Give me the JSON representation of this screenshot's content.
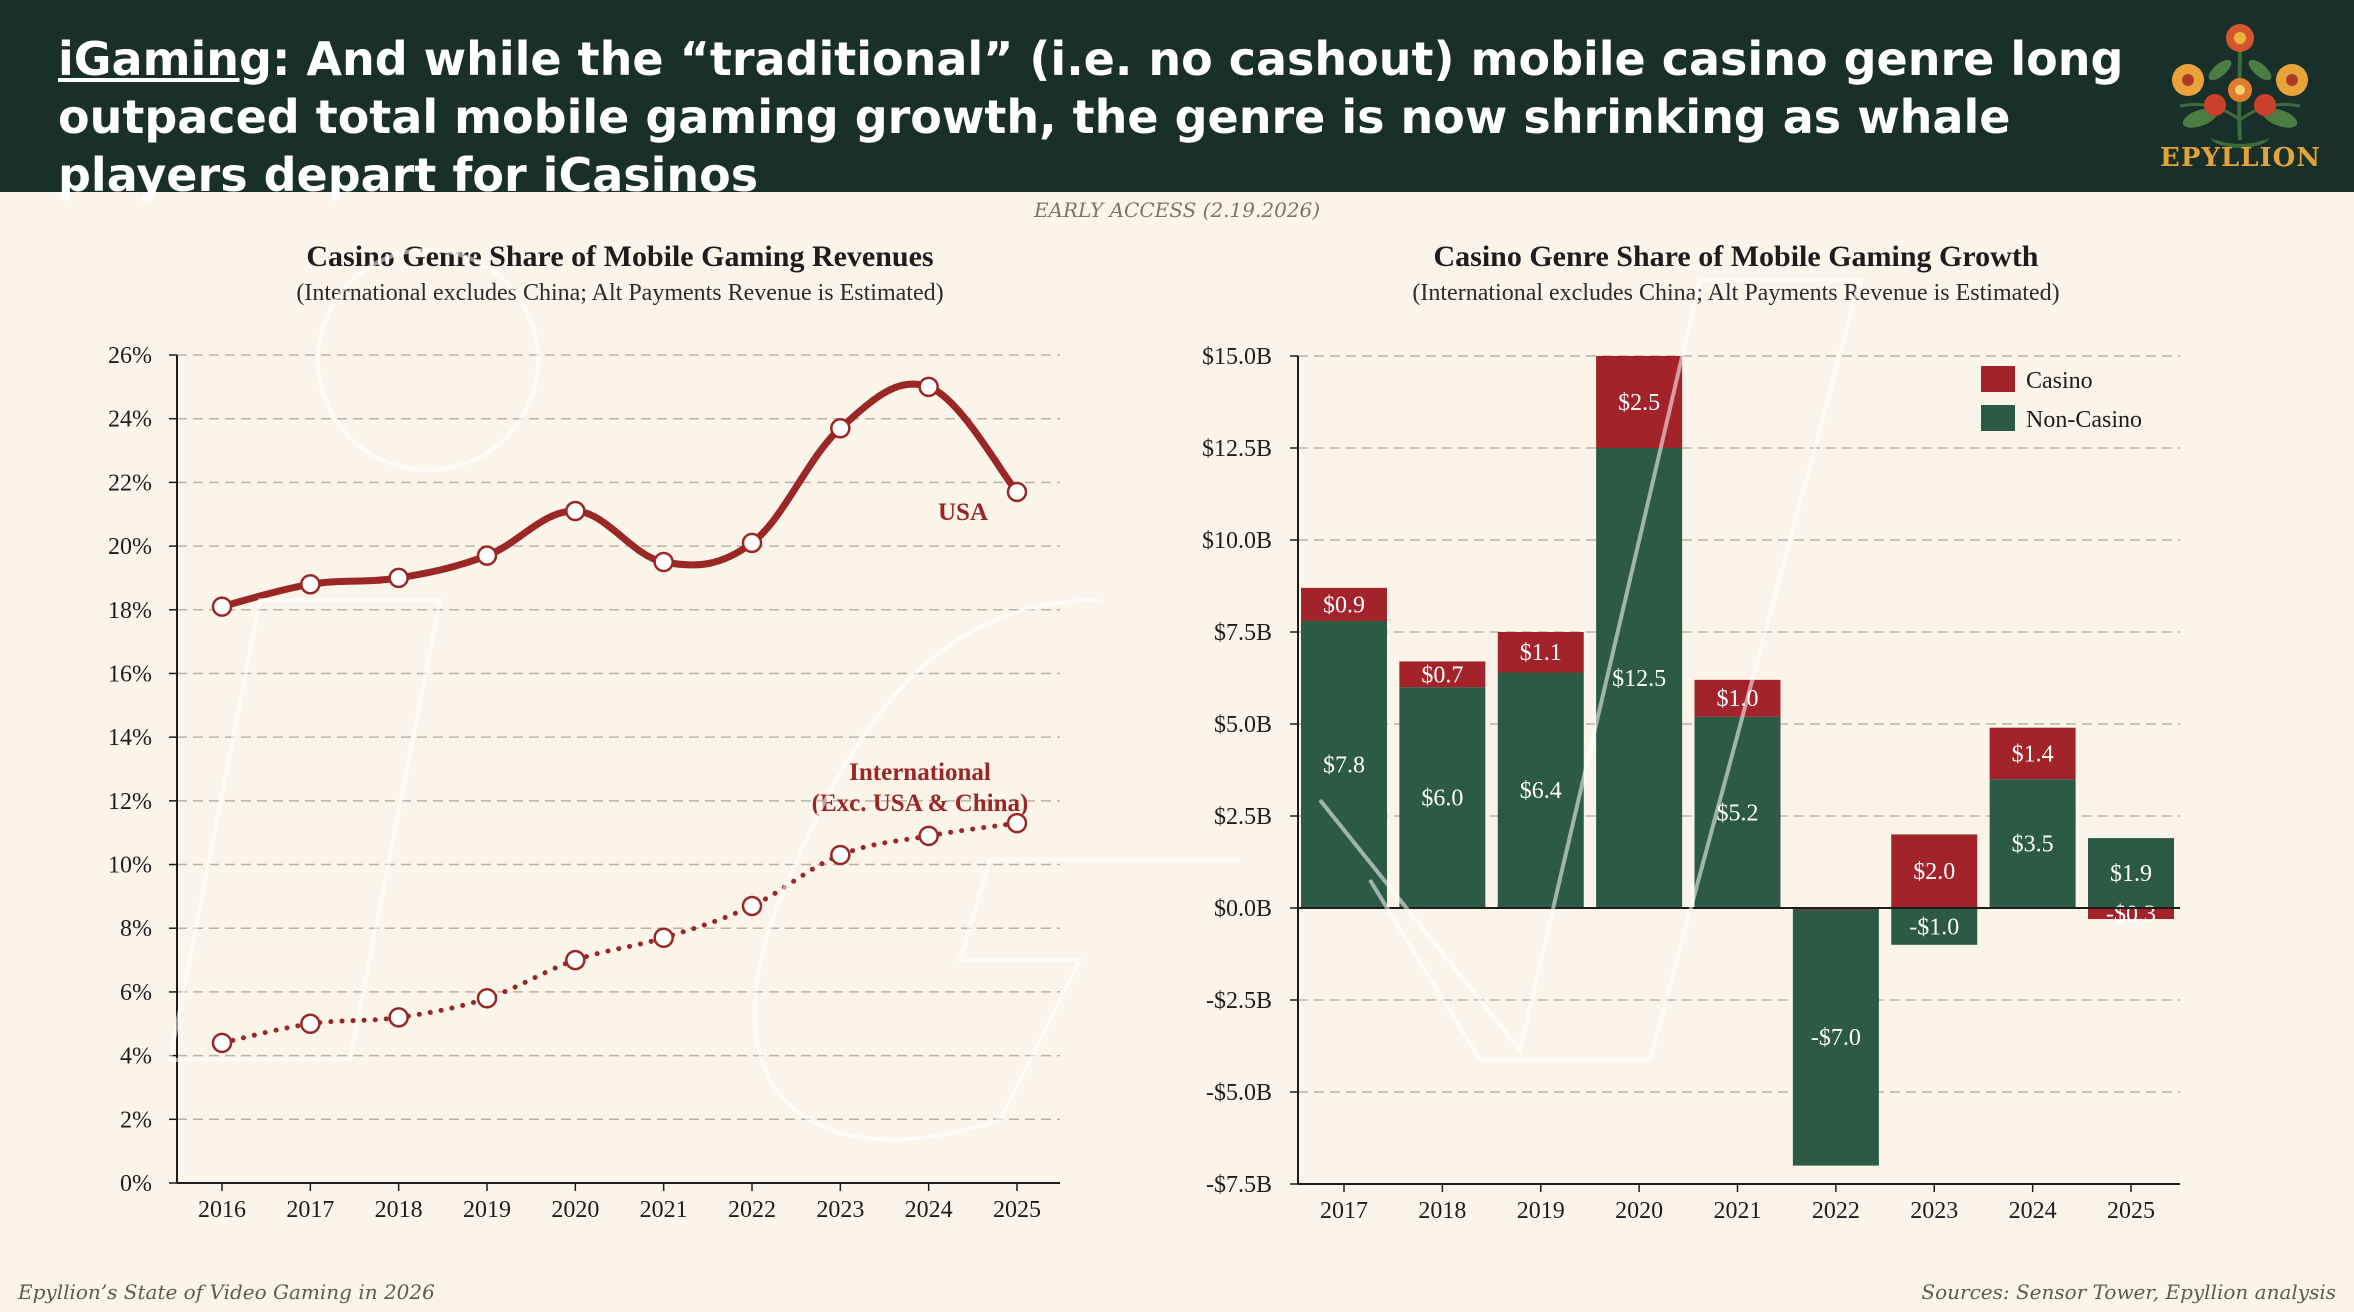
{
  "header": {
    "headline_keyword": "iGaming",
    "headline_rest": ": And while the “traditional” (i.e. no cashout) mobile casino genre long outpaced total mobile gaming growth, the genre is now shrinking as whale players depart for iCasinos",
    "logo_text": "EPYLLION"
  },
  "early_access": "EARLY ACCESS (2.19.2026)",
  "footer": {
    "left": "Epyllion’s State of Video Gaming in 2026",
    "right": "Sources: Sensor Tower, Epyllion analysis"
  },
  "colors": {
    "header_bg": "#19302a",
    "casino": "#a3232a",
    "non_casino": "#2d5a45",
    "line": "#9a2626",
    "background": "#fbf5e9"
  },
  "chart_data": [
    {
      "type": "line",
      "title": "Casino Genre Share of Mobile Gaming Revenues",
      "subtitle": "(International excludes China; Alt Payments Revenue is Estimated)",
      "x": [
        2016,
        2017,
        2018,
        2019,
        2020,
        2021,
        2022,
        2023,
        2024,
        2025
      ],
      "xlabels": [
        "2016",
        "2017",
        "2018",
        "2019",
        "2020",
        "2021",
        "2022",
        "2023",
        "2024",
        "2025"
      ],
      "ylim": [
        0,
        26
      ],
      "yticks": [
        0,
        2,
        4,
        6,
        8,
        10,
        12,
        14,
        16,
        18,
        20,
        22,
        24,
        26
      ],
      "ytick_labels": [
        "0%",
        "2%",
        "4%",
        "6%",
        "8%",
        "10%",
        "12%",
        "14%",
        "16%",
        "18%",
        "20%",
        "22%",
        "24%",
        "26%"
      ],
      "grid": true,
      "series": [
        {
          "name": "USA",
          "label": "USA",
          "style": "solid",
          "values": [
            18.1,
            18.8,
            19.0,
            19.7,
            21.1,
            19.5,
            20.1,
            23.7,
            25.0,
            21.7
          ]
        },
        {
          "name": "International (Exc. USA & China)",
          "label_line1": "International",
          "label_line2": "(Exc. USA & China)",
          "style": "dotted",
          "values": [
            4.4,
            5.0,
            5.2,
            5.8,
            7.0,
            7.7,
            8.7,
            10.3,
            10.9,
            11.3
          ]
        }
      ]
    },
    {
      "type": "bar",
      "stacked": true,
      "title": "Casino Genre Share of Mobile Gaming Growth",
      "subtitle": "(International excludes China; Alt Payments Revenue is Estimated)",
      "categories": [
        "2017",
        "2018",
        "2019",
        "2020",
        "2021",
        "2022",
        "2023",
        "2024",
        "2025"
      ],
      "ylim": [
        -7.5,
        15
      ],
      "yticks": [
        -7.5,
        -5,
        -2.5,
        0,
        2.5,
        5,
        7.5,
        10,
        12.5,
        15
      ],
      "ytick_labels": [
        "-$7.5B",
        "-$5.0B",
        "-$2.5B",
        "$0.0B",
        "$2.5B",
        "$5.0B",
        "$7.5B",
        "$10.0B",
        "$12.5B",
        "$15.0B"
      ],
      "grid": true,
      "legend_position": "top-right",
      "series": [
        {
          "name": "Non-Casino",
          "values": [
            7.8,
            6.0,
            6.4,
            12.5,
            5.2,
            -7.0,
            -1.0,
            3.5,
            1.9
          ],
          "labels": [
            "$7.8",
            "$6.0",
            "$6.4",
            "$12.5",
            "$5.2",
            "-$7.0",
            "-$1.0",
            "$3.5",
            "$1.9"
          ]
        },
        {
          "name": "Casino",
          "values": [
            0.9,
            0.7,
            1.1,
            2.5,
            1.0,
            0.0,
            2.0,
            1.4,
            -0.3
          ],
          "labels": [
            "$0.9",
            "$0.7",
            "$1.1",
            "$2.5",
            "$1.0",
            "",
            "$2.0",
            "$1.4",
            "-$0.3"
          ]
        }
      ]
    }
  ]
}
